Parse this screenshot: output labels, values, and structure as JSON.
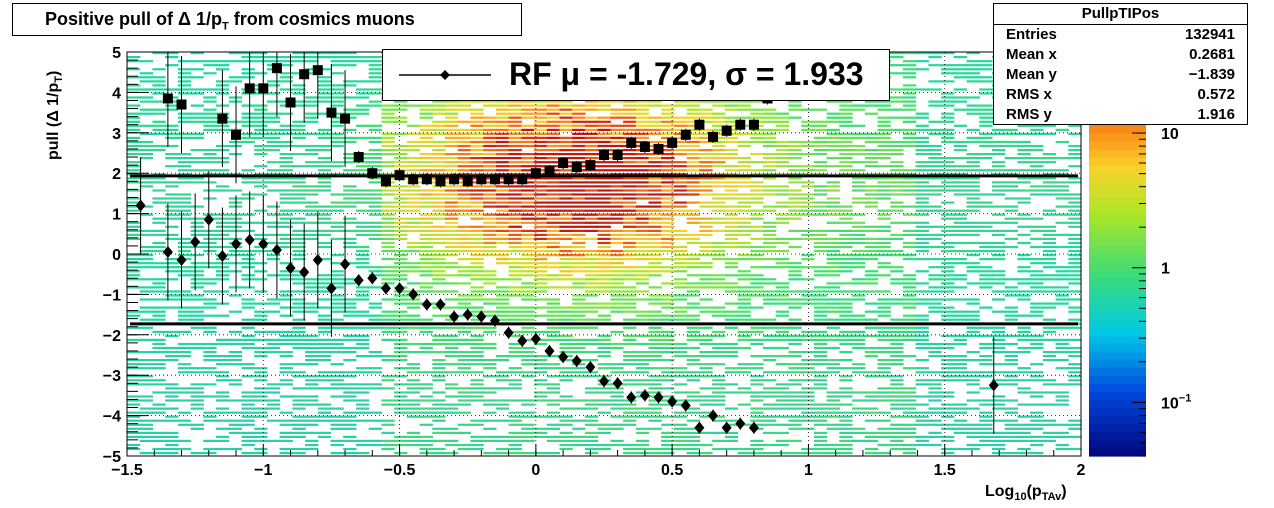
{
  "title": {
    "prefix": "Positive pull of Δ 1/p",
    "sub": "T",
    "suffix": " from cosmics muons"
  },
  "stats": {
    "name": "PullpTIPos",
    "rows": [
      {
        "label": "Entries",
        "value": "132941"
      },
      {
        "label": "Mean x",
        "value": "0.2681"
      },
      {
        "label": "Mean y",
        "value": "−1.839"
      },
      {
        "label": "RMS x",
        "value": "0.572"
      },
      {
        "label": "RMS y",
        "value": "1.916"
      }
    ]
  },
  "legend": {
    "text": "RF μ = -1.729, σ =   1.933"
  },
  "axes": {
    "xlabel": {
      "main": "Log",
      "sub1": "10",
      "mid": "(p",
      "sub2": "TAv",
      "end": ")"
    },
    "ylabel": {
      "main": "pull (Δ 1/p",
      "sub": "T",
      "end": ")"
    },
    "xticks": [
      {
        "v": -1.5,
        "t": "−1.5"
      },
      {
        "v": -1,
        "t": "−1"
      },
      {
        "v": -0.5,
        "t": "−0.5"
      },
      {
        "v": 0,
        "t": "0"
      },
      {
        "v": 0.5,
        "t": "0.5"
      },
      {
        "v": 1,
        "t": "1"
      },
      {
        "v": 1.5,
        "t": "1.5"
      },
      {
        "v": 2,
        "t": "2"
      }
    ],
    "yticks": [
      {
        "v": -5,
        "t": "−5"
      },
      {
        "v": -4,
        "t": "−4"
      },
      {
        "v": -3,
        "t": "−3"
      },
      {
        "v": -2,
        "t": "−2"
      },
      {
        "v": -1,
        "t": "−1"
      },
      {
        "v": 0,
        "t": "0"
      },
      {
        "v": 1,
        "t": "1"
      },
      {
        "v": 2,
        "t": "2"
      },
      {
        "v": 3,
        "t": "3"
      },
      {
        "v": 4,
        "t": "4"
      },
      {
        "v": 5,
        "t": "5"
      }
    ],
    "zticks": [
      {
        "v": 10,
        "t": "10"
      },
      {
        "v": 1,
        "t": "1"
      },
      {
        "v": 0.1,
        "t": "10",
        "sup": "−1"
      }
    ]
  },
  "chart_data": {
    "type": "heatmap",
    "xlim": [
      -1.5,
      2
    ],
    "ylim": [
      -5,
      5
    ],
    "zlim": [
      0.04,
      40
    ],
    "zscale": "log",
    "grid": true,
    "hlines": [
      1.933,
      -1.729
    ],
    "series": [
      {
        "marker": "square",
        "points": [
          [
            -1.35,
            3.85
          ],
          [
            -1.3,
            3.7
          ],
          [
            -1.15,
            3.35
          ],
          [
            -1.1,
            2.95
          ],
          [
            -1.05,
            4.1
          ],
          [
            -1.0,
            4.1
          ],
          [
            -0.95,
            4.6
          ],
          [
            -0.9,
            3.75
          ],
          [
            -0.85,
            4.45
          ],
          [
            -0.8,
            4.55
          ],
          [
            -0.75,
            3.5
          ],
          [
            -0.7,
            3.35
          ],
          [
            -0.65,
            2.4
          ],
          [
            -0.6,
            2.0
          ],
          [
            -0.55,
            1.8
          ],
          [
            -0.5,
            1.95
          ],
          [
            -0.45,
            1.85
          ],
          [
            -0.4,
            1.85
          ],
          [
            -0.35,
            1.8
          ],
          [
            -0.3,
            1.85
          ],
          [
            -0.25,
            1.8
          ],
          [
            -0.2,
            1.85
          ],
          [
            -0.15,
            1.85
          ],
          [
            -0.1,
            1.85
          ],
          [
            -0.05,
            1.85
          ],
          [
            0.0,
            2.0
          ],
          [
            0.05,
            2.05
          ],
          [
            0.1,
            2.25
          ],
          [
            0.15,
            2.15
          ],
          [
            0.2,
            2.2
          ],
          [
            0.25,
            2.45
          ],
          [
            0.3,
            2.45
          ],
          [
            0.35,
            2.75
          ],
          [
            0.4,
            2.65
          ],
          [
            0.45,
            2.6
          ],
          [
            0.5,
            2.75
          ],
          [
            0.55,
            2.95
          ],
          [
            0.6,
            3.2
          ],
          [
            0.65,
            2.9
          ],
          [
            0.7,
            3.05
          ],
          [
            0.75,
            3.2
          ],
          [
            0.8,
            3.2
          ],
          [
            0.85,
            3.85
          ]
        ]
      },
      {
        "marker": "diamond",
        "points": [
          [
            -1.45,
            1.2
          ],
          [
            -1.35,
            0.05
          ],
          [
            -1.3,
            -0.15
          ],
          [
            -1.25,
            0.3
          ],
          [
            -1.2,
            0.85
          ],
          [
            -1.15,
            -0.05
          ],
          [
            -1.1,
            0.25
          ],
          [
            -1.05,
            0.35
          ],
          [
            -1.0,
            0.25
          ],
          [
            -0.95,
            0.1
          ],
          [
            -0.9,
            -0.35
          ],
          [
            -0.85,
            -0.45
          ],
          [
            -0.8,
            -0.15
          ],
          [
            -0.75,
            -0.85
          ],
          [
            -0.7,
            -0.25
          ],
          [
            -0.65,
            -0.65
          ],
          [
            -0.6,
            -0.6
          ],
          [
            -0.55,
            -0.85
          ],
          [
            -0.5,
            -0.85
          ],
          [
            -0.45,
            -1.0
          ],
          [
            -0.4,
            -1.25
          ],
          [
            -0.35,
            -1.25
          ],
          [
            -0.3,
            -1.55
          ],
          [
            -0.25,
            -1.5
          ],
          [
            -0.2,
            -1.55
          ],
          [
            -0.15,
            -1.65
          ],
          [
            -0.1,
            -1.95
          ],
          [
            -0.05,
            -2.15
          ],
          [
            0.0,
            -2.1
          ],
          [
            0.05,
            -2.4
          ],
          [
            0.1,
            -2.55
          ],
          [
            0.15,
            -2.65
          ],
          [
            0.2,
            -2.8
          ],
          [
            0.25,
            -3.15
          ],
          [
            0.3,
            -3.2
          ],
          [
            0.35,
            -3.55
          ],
          [
            0.4,
            -3.5
          ],
          [
            0.45,
            -3.55
          ],
          [
            0.5,
            -3.65
          ],
          [
            0.55,
            -3.75
          ],
          [
            0.6,
            -4.3
          ],
          [
            0.65,
            -4.0
          ],
          [
            0.7,
            -4.3
          ],
          [
            0.75,
            -4.2
          ],
          [
            0.8,
            -4.3
          ],
          [
            1.68,
            -3.25
          ]
        ]
      }
    ]
  }
}
